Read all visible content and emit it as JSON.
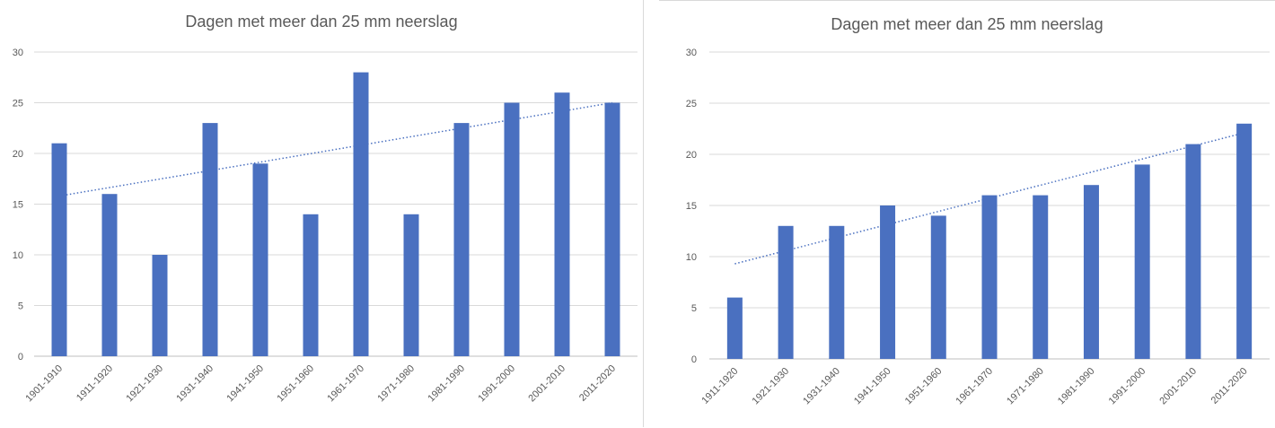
{
  "chart_data": [
    {
      "type": "bar",
      "title": "Dagen met meer dan 25 mm neerslag",
      "categories": [
        "1901-1910",
        "1911-1920",
        "1921-1930",
        "1931-1940",
        "1941-1950",
        "1951-1960",
        "1961-1970",
        "1971-1980",
        "1981-1990",
        "1991-2000",
        "2001-2010",
        "2011-2020"
      ],
      "values": [
        21,
        16,
        10,
        23,
        19,
        14,
        28,
        14,
        23,
        25,
        26,
        25
      ],
      "trendline": {
        "type": "linear",
        "style": "dotted",
        "start": 15.8,
        "end": 25.0
      },
      "ylim": [
        0,
        30
      ],
      "yticks": [
        0,
        5,
        10,
        15,
        20,
        25,
        30
      ],
      "grid": true,
      "xlabel": "",
      "ylabel": "",
      "bar_color": "#4a70c0"
    },
    {
      "type": "bar",
      "title": "Dagen met meer dan 25 mm neerslag",
      "categories": [
        "1911-1920",
        "1921-1930",
        "1931-1940",
        "1941-1950",
        "1951-1960",
        "1961-1970",
        "1971-1980",
        "1981-1990",
        "1991-2000",
        "2001-2010",
        "2011-2020"
      ],
      "values": [
        6,
        13,
        13,
        15,
        14,
        16,
        16,
        17,
        19,
        21,
        23
      ],
      "trendline": {
        "type": "linear",
        "style": "dotted",
        "start": 9.3,
        "end": 22.1
      },
      "ylim": [
        0,
        30
      ],
      "yticks": [
        0,
        5,
        10,
        15,
        20,
        25,
        30
      ],
      "grid": true,
      "xlabel": "",
      "ylabel": "",
      "bar_color": "#4a70c0"
    }
  ]
}
